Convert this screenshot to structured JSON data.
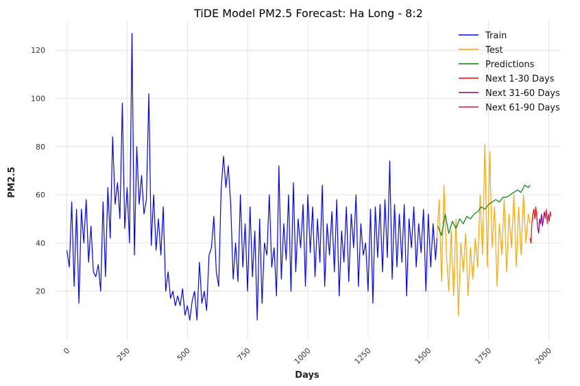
{
  "chart_data": {
    "type": "line",
    "title": "TiDE Model PM2.5 Forecast: Ha Long - 8:2",
    "xlabel": "Days",
    "ylabel": "PM2.5",
    "xlim": [
      -50,
      2050
    ],
    "ylim": [
      0,
      132
    ],
    "x_ticks": [
      0,
      250,
      500,
      750,
      1000,
      1250,
      1500,
      1750,
      2000
    ],
    "y_ticks": [
      20,
      40,
      60,
      80,
      100,
      120
    ],
    "grid": true,
    "legend_position": "top-right",
    "series": [
      {
        "name": "Train",
        "color": "#0000ff",
        "x": [
          0,
          10,
          20,
          30,
          40,
          50,
          60,
          70,
          80,
          90,
          100,
          110,
          120,
          130,
          140,
          150,
          160,
          170,
          180,
          190,
          200,
          210,
          220,
          230,
          240,
          250,
          260,
          270,
          280,
          290,
          300,
          310,
          320,
          330,
          340,
          350,
          360,
          370,
          380,
          390,
          400,
          410,
          420,
          430,
          440,
          450,
          460,
          470,
          480,
          490,
          500,
          510,
          520,
          530,
          540,
          550,
          560,
          570,
          580,
          590,
          600,
          610,
          620,
          630,
          640,
          650,
          660,
          670,
          680,
          690,
          700,
          710,
          720,
          730,
          740,
          750,
          760,
          770,
          780,
          790,
          800,
          810,
          820,
          830,
          840,
          850,
          860,
          870,
          880,
          890,
          900,
          910,
          920,
          930,
          940,
          950,
          960,
          970,
          980,
          990,
          1000,
          1010,
          1020,
          1030,
          1040,
          1050,
          1060,
          1070,
          1080,
          1090,
          1100,
          1110,
          1120,
          1130,
          1140,
          1150,
          1160,
          1170,
          1180,
          1190,
          1200,
          1210,
          1220,
          1230,
          1240,
          1250,
          1260,
          1270,
          1280,
          1290,
          1300,
          1310,
          1320,
          1330,
          1340,
          1350,
          1360,
          1370,
          1380,
          1390,
          1400,
          1410,
          1420,
          1430,
          1440,
          1450,
          1460,
          1470,
          1480,
          1490,
          1500,
          1510,
          1520,
          1530,
          1536
        ],
        "y": [
          37,
          30,
          57,
          22,
          54,
          15,
          54,
          40,
          58,
          32,
          47,
          28,
          26,
          31,
          20,
          57,
          26,
          63,
          42,
          84,
          56,
          65,
          50,
          98,
          46,
          63,
          40,
          127,
          35,
          80,
          56,
          68,
          52,
          58,
          102,
          39,
          60,
          37,
          50,
          35,
          55,
          20,
          28,
          17,
          20,
          14,
          18,
          14,
          21,
          10,
          14,
          8,
          16,
          20,
          8,
          32,
          15,
          20,
          12,
          35,
          38,
          51,
          28,
          22,
          62,
          76,
          63,
          72,
          56,
          25,
          40,
          24,
          60,
          30,
          48,
          20,
          55,
          26,
          45,
          8,
          50,
          15,
          40,
          35,
          60,
          30,
          38,
          18,
          72,
          25,
          48,
          33,
          60,
          20,
          65,
          28,
          50,
          38,
          56,
          22,
          60,
          36,
          55,
          26,
          50,
          32,
          64,
          22,
          48,
          35,
          53,
          28,
          58,
          18,
          45,
          32,
          55,
          24,
          52,
          38,
          60,
          22,
          48,
          35,
          40,
          20,
          54,
          15,
          55,
          34,
          56,
          28,
          58,
          34,
          74,
          25,
          56,
          30,
          52,
          32,
          56,
          18,
          50,
          38,
          55,
          30,
          48,
          36,
          54,
          20,
          52,
          30,
          48,
          33,
          42
        ]
      },
      {
        "name": "Test",
        "color": "#ffa500",
        "x": [
          1536,
          1545,
          1555,
          1565,
          1575,
          1585,
          1595,
          1605,
          1615,
          1625,
          1635,
          1645,
          1655,
          1665,
          1675,
          1685,
          1695,
          1705,
          1715,
          1725,
          1735,
          1745,
          1755,
          1765,
          1775,
          1785,
          1795,
          1805,
          1815,
          1825,
          1835,
          1845,
          1855,
          1865,
          1875,
          1885,
          1895,
          1905,
          1915,
          1922
        ],
        "y": [
          42,
          58,
          24,
          64,
          35,
          20,
          45,
          18,
          50,
          10,
          40,
          28,
          44,
          18,
          38,
          25,
          42,
          30,
          60,
          35,
          81,
          30,
          78,
          38,
          55,
          22,
          48,
          35,
          58,
          28,
          52,
          38,
          60,
          30,
          55,
          35,
          60,
          40,
          52,
          48
        ]
      },
      {
        "name": "Predictions",
        "color": "#008000",
        "x": [
          1540,
          1555,
          1570,
          1585,
          1600,
          1615,
          1630,
          1645,
          1660,
          1675,
          1690,
          1705,
          1720,
          1735,
          1750,
          1765,
          1780,
          1795,
          1810,
          1825,
          1840,
          1855,
          1870,
          1885,
          1900,
          1915,
          1922
        ],
        "y": [
          47,
          43,
          52,
          44,
          49,
          46,
          50,
          48,
          51,
          50,
          52,
          53,
          55,
          54,
          56,
          57,
          58,
          57,
          59,
          59,
          60,
          61,
          62,
          61,
          64,
          63,
          64
        ]
      },
      {
        "name": "Next 1-30 Days",
        "color": "#ff0000",
        "x": [
          1922,
          1926,
          1930,
          1934,
          1938,
          1942,
          1946,
          1950
        ],
        "y": [
          42,
          40,
          48,
          52,
          54,
          50,
          55,
          51
        ]
      },
      {
        "name": "Next 31-60 Days",
        "color": "#800080",
        "x": [
          1950,
          1954,
          1958,
          1962,
          1966,
          1970,
          1974,
          1978,
          1982
        ],
        "y": [
          51,
          46,
          44,
          50,
          48,
          52,
          47,
          50,
          53
        ]
      },
      {
        "name": "Next 61-90 Days",
        "color": "#dc143c",
        "x": [
          1982,
          1986,
          1990,
          1994,
          1998,
          2002,
          2006,
          2010
        ],
        "y": [
          53,
          50,
          54,
          48,
          52,
          49,
          53,
          51
        ]
      }
    ]
  }
}
